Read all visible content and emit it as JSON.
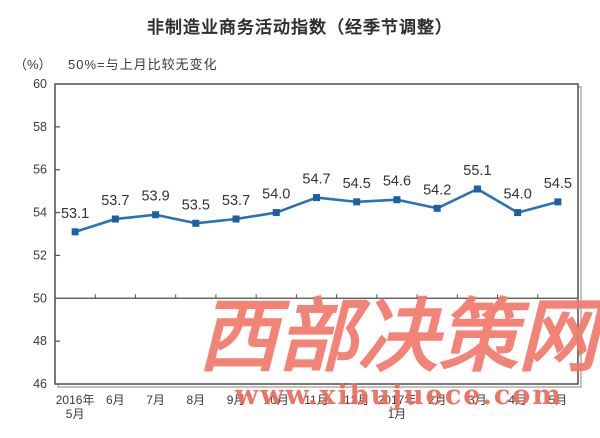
{
  "chart_data": {
    "type": "line",
    "title": "非制造业商务活动指数（经季节调整）",
    "subtitle": "50%=与上月比较无变化",
    "unit_label": "（%）",
    "categories": [
      "2016年\n5月",
      "6月",
      "7月",
      "8月",
      "9月",
      "10月",
      "11月",
      "12月",
      "2017年\n1月",
      "2月",
      "3月",
      "4月",
      "5月"
    ],
    "values": [
      53.1,
      53.7,
      53.9,
      53.5,
      53.7,
      54.0,
      54.7,
      54.5,
      54.6,
      54.2,
      55.1,
      54.0,
      54.5
    ],
    "ylim": [
      46,
      60
    ],
    "ytick_step": 2,
    "yticks": [
      46,
      48,
      50,
      52,
      54,
      56,
      58,
      60
    ],
    "reference_value": 50,
    "grid": "off",
    "legend": "none",
    "colors": {
      "line": "#2a72b3",
      "marker": "#1b5fa4",
      "axis": "#4d4d4d",
      "data_label": "#333333",
      "tick_label": "#3a3a3a"
    }
  },
  "watermark": {
    "text": "西部决策网",
    "url": "www.xibujuece.com",
    "color": "#f1796b"
  }
}
